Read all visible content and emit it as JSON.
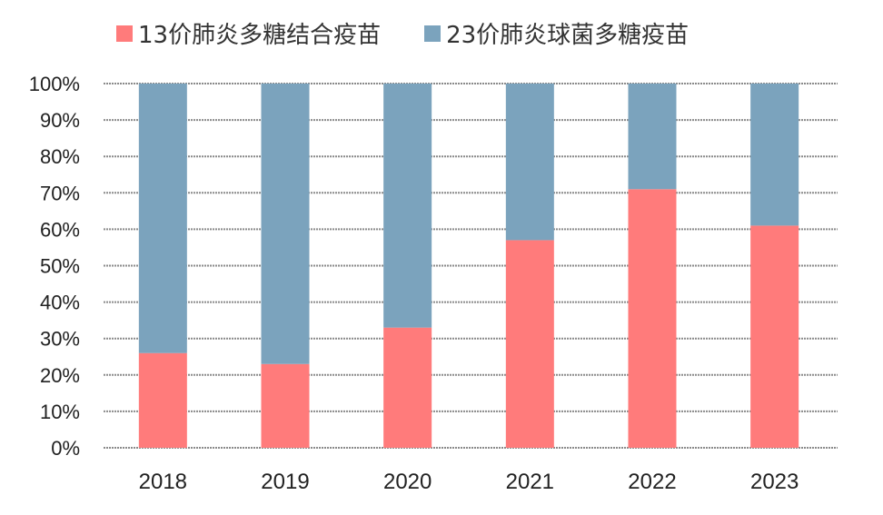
{
  "chart_data": {
    "type": "bar",
    "stacked": true,
    "categories": [
      "2018",
      "2019",
      "2020",
      "2021",
      "2022",
      "2023"
    ],
    "series": [
      {
        "name": "13价肺炎多糖结合疫苗",
        "color": "#FF7B7B",
        "values": [
          26,
          23,
          33,
          57,
          71,
          61
        ]
      },
      {
        "name": "23价肺炎球菌多糖疫苗",
        "color": "#7BA3BD",
        "values": [
          74,
          77,
          67,
          43,
          29,
          39
        ]
      }
    ],
    "yticks": [
      "0%",
      "10%",
      "20%",
      "30%",
      "40%",
      "50%",
      "60%",
      "70%",
      "80%",
      "90%",
      "100%"
    ],
    "ylim": [
      0,
      100
    ],
    "grid": true,
    "legend": "top",
    "title": "",
    "xlabel": "",
    "ylabel": ""
  }
}
